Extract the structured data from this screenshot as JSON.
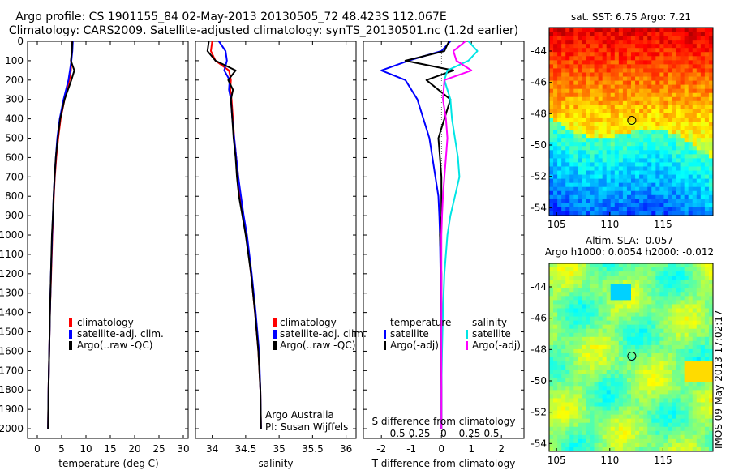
{
  "header": {
    "title_line1": "Argo profile: CS 1901155_84 02-May-2013 20130505_72 48.423S 112.067E",
    "title_line2": "Climatology: CARS2009. Satellite-adjusted climatology: synTS_20130501.nc (1.2d earlier)"
  },
  "colors": {
    "climatology": "#ff0000",
    "satellite": "#0000ff",
    "argo": "#000000",
    "sat_salinity": "#00e5e5",
    "argo_salinity": "#ff00ff"
  },
  "depth_ticks": [
    "0",
    "100",
    "200",
    "300",
    "400",
    "500",
    "600",
    "700",
    "800",
    "900",
    "1000",
    "1100",
    "1200",
    "1300",
    "1400",
    "1500",
    "1600",
    "1700",
    "1800",
    "1900",
    "2000"
  ],
  "chart_data": [
    {
      "type": "line",
      "panel": "temperature",
      "xlabel": "temperature (deg C)",
      "ylabel": "",
      "xlim": [
        -2,
        31
      ],
      "ylim": [
        2050,
        0
      ],
      "x_ticks": [
        "0",
        "5",
        "10",
        "15",
        "20",
        "25",
        "30"
      ],
      "legend": [
        "climatology",
        "satellite-adj. clim.",
        "Argo(..raw -QC)"
      ],
      "legend_position": "lower-right",
      "depths": [
        0,
        50,
        100,
        150,
        200,
        300,
        400,
        500,
        600,
        700,
        800,
        900,
        1000,
        1200,
        1400,
        1600,
        1800,
        2000
      ],
      "series": [
        {
          "name": "climatology",
          "values": [
            7.0,
            7.0,
            7.0,
            6.9,
            6.6,
            5.6,
            4.8,
            4.3,
            3.9,
            3.6,
            3.4,
            3.25,
            3.1,
            2.85,
            2.6,
            2.45,
            2.3,
            2.2
          ]
        },
        {
          "name": "satellite-adj. clim.",
          "values": [
            7.3,
            7.2,
            7.0,
            6.7,
            6.4,
            5.4,
            4.6,
            4.1,
            3.8,
            3.55,
            3.35,
            3.2,
            3.05,
            2.8,
            2.6,
            2.45,
            2.3,
            2.2
          ]
        },
        {
          "name": "Argo(..raw -QC)",
          "values": [
            7.2,
            7.1,
            6.9,
            7.6,
            7.0,
            5.6,
            4.7,
            4.2,
            3.8,
            3.55,
            3.35,
            3.2,
            3.0,
            2.8,
            2.6,
            2.45,
            2.3,
            2.2
          ]
        }
      ]
    },
    {
      "type": "line",
      "panel": "salinity",
      "xlabel": "salinity",
      "ylabel": "",
      "xlim": [
        33.75,
        36.15
      ],
      "ylim": [
        2050,
        0
      ],
      "x_ticks": [
        "34",
        "34.5",
        "35",
        "35.5",
        "36"
      ],
      "legend": [
        "climatology",
        "satellite-adj. clim.",
        "Argo(..raw -QC)"
      ],
      "legend_position": "lower-right",
      "annotations": [
        "Argo Australia",
        "PI: Susan Wijffels"
      ],
      "depths": [
        0,
        50,
        100,
        150,
        200,
        250,
        300,
        400,
        500,
        600,
        700,
        800,
        900,
        1000,
        1200,
        1400,
        1600,
        1800,
        2000
      ],
      "series": [
        {
          "name": "climatology",
          "values": [
            34.0,
            33.98,
            34.05,
            34.25,
            34.28,
            34.27,
            34.29,
            34.31,
            34.33,
            34.36,
            34.39,
            34.42,
            34.46,
            34.51,
            34.58,
            34.64,
            34.69,
            34.72,
            34.73
          ]
        },
        {
          "name": "satellite-adj. clim.",
          "values": [
            34.1,
            34.2,
            34.22,
            34.18,
            34.26,
            34.25,
            34.28,
            34.3,
            34.33,
            34.36,
            34.39,
            34.43,
            34.47,
            34.52,
            34.59,
            34.65,
            34.7,
            34.72,
            34.73
          ]
        },
        {
          "name": "Argo(..raw -QC)",
          "values": [
            33.95,
            33.93,
            34.05,
            34.35,
            34.24,
            34.31,
            34.28,
            34.3,
            34.32,
            34.35,
            34.37,
            34.4,
            34.45,
            34.5,
            34.58,
            34.64,
            34.69,
            34.72,
            34.73
          ]
        }
      ]
    },
    {
      "type": "line",
      "panel": "difference",
      "xlabel": "T difference from climatology",
      "ylabel": "",
      "secondary_xlabel": "S difference from climatology",
      "xlim": [
        -2.6,
        2.75
      ],
      "ylim": [
        2050,
        0
      ],
      "x_ticks": [
        "-2",
        "-1",
        "0",
        "1",
        "2"
      ],
      "secondary_x_ticks": [
        "-0.5",
        "-0.25",
        "0",
        "0.25",
        "0.5"
      ],
      "legend": [
        "temperature",
        "satellite",
        "Argo(-adj)",
        "salinity",
        "satellite",
        "Argo(-adj)"
      ],
      "legend_position": "lower-right",
      "depths": [
        0,
        50,
        100,
        150,
        200,
        300,
        400,
        500,
        600,
        700,
        800,
        900,
        1000,
        1200,
        1400,
        1600,
        1800,
        2000
      ],
      "series": [
        {
          "name": "satellite (temperature)",
          "values": [
            0.3,
            0.0,
            -1.1,
            -2.0,
            -1.2,
            -0.8,
            -0.6,
            -0.4,
            -0.3,
            -0.2,
            -0.1,
            -0.07,
            -0.05,
            -0.03,
            0.0,
            0.0,
            0.0,
            0.0
          ]
        },
        {
          "name": "Argo(-adj) (temperature)",
          "values": [
            0.25,
            0.1,
            -1.2,
            0.4,
            -0.5,
            0.3,
            0.1,
            -0.1,
            -0.05,
            0.0,
            0.0,
            0.0,
            -0.05,
            0.0,
            0.0,
            0.0,
            0.0,
            0.0
          ]
        },
        {
          "name": "satellite (salinity)",
          "values": [
            0.9,
            1.2,
            0.9,
            0.2,
            0.1,
            0.3,
            0.35,
            0.45,
            0.55,
            0.6,
            0.45,
            0.3,
            0.2,
            0.1,
            0.05,
            0.02,
            0.0,
            0.0
          ]
        },
        {
          "name": "Argo(-adj) (salinity)",
          "values": [
            0.8,
            0.4,
            0.5,
            1.0,
            0.1,
            0.05,
            0.15,
            0.2,
            0.15,
            0.1,
            0.05,
            0.02,
            0.0,
            0.0,
            0.0,
            0.0,
            0.0,
            0.0
          ]
        }
      ]
    },
    {
      "type": "heatmap",
      "panel": "sst_map",
      "title": "sat. SST: 6.75 Argo: 7.21",
      "xlim": [
        104.3,
        119.7
      ],
      "ylim": [
        -54.5,
        -42.5
      ],
      "x_ticks": [
        "105",
        "110",
        "115"
      ],
      "y_ticks": [
        "-44",
        "-46",
        "-48",
        "-50",
        "-52",
        "-54"
      ],
      "marker": {
        "lon": 112.067,
        "lat": -48.423
      }
    },
    {
      "type": "heatmap",
      "panel": "sla_map",
      "title": "Altim. SLA: -0.057",
      "subtitle": "Argo h1000: 0.0054 h2000: -0.012",
      "xlim": [
        104.3,
        119.7
      ],
      "ylim": [
        -54.5,
        -42.5
      ],
      "x_ticks": [
        "105",
        "110",
        "115"
      ],
      "y_ticks": [
        "-44",
        "-46",
        "-48",
        "-50",
        "-52",
        "-54"
      ],
      "marker": {
        "lon": 112.067,
        "lat": -48.423
      }
    }
  ],
  "footer_stamp": "IMOS 09-May-2013 17:02:17"
}
